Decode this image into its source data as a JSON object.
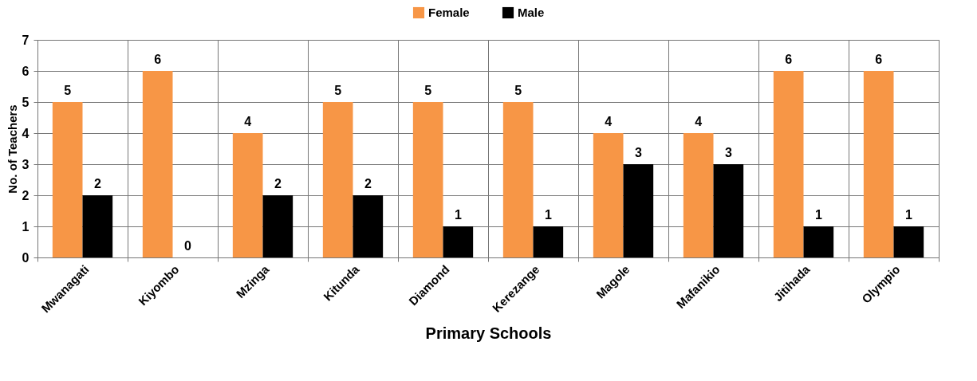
{
  "chart_data": {
    "type": "bar",
    "xlabel": "Primary Schools",
    "ylabel": "No. of Teachers",
    "categories": [
      "Mwanagati",
      "Kiyombo",
      "Mzinga",
      "Kitunda",
      "Diamond",
      "Kerezange",
      "Magole",
      "Mafanikio",
      "Jitihada",
      "Olympio"
    ],
    "series": [
      {
        "name": "Female",
        "color": "#f79646",
        "values": [
          5,
          6,
          4,
          5,
          5,
          5,
          4,
          4,
          6,
          6
        ]
      },
      {
        "name": "Male",
        "color": "#000000",
        "values": [
          2,
          0,
          2,
          2,
          1,
          1,
          3,
          3,
          1,
          1
        ]
      }
    ],
    "ylim": [
      0,
      7
    ],
    "yticks": [
      0,
      1,
      2,
      3,
      4,
      5,
      6,
      7
    ],
    "grid": true,
    "legend": "top",
    "data_labels": true
  }
}
